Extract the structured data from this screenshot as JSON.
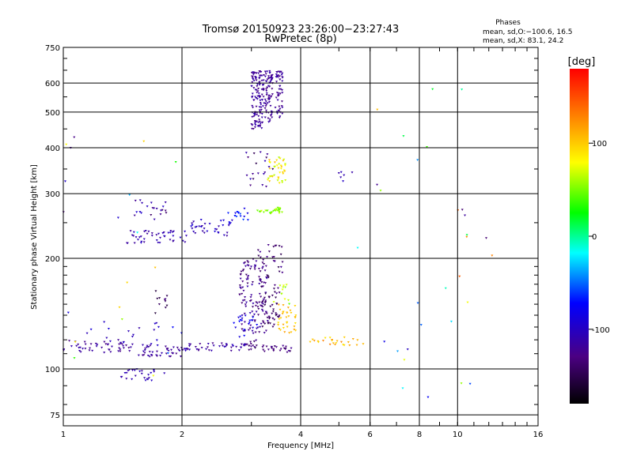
{
  "chart_data": {
    "type": "scatter",
    "title": "Tromsø 20150923 23:26:00−23:27:43",
    "subtitle": "RwPretec (8p)",
    "xlabel": "Frequency [MHz]",
    "ylabel": "Stationary phase Virtual Height [km]",
    "x_scale": "log2",
    "y_scale": "log",
    "xlim": [
      1,
      16
    ],
    "ylim": [
      70,
      750
    ],
    "x_ticks": [
      1,
      2,
      4,
      6,
      8,
      10,
      16
    ],
    "x_tick_labels": [
      "1",
      "2",
      "4",
      "6",
      "8",
      "10",
      "16"
    ],
    "y_ticks": [
      75,
      100,
      200,
      300,
      400,
      500,
      600,
      750
    ],
    "y_tick_labels": [
      "75",
      "100",
      "200",
      "300",
      "400",
      "500",
      "600",
      "750"
    ],
    "grid": true,
    "phases_info": {
      "heading": "Phases",
      "line_o": "mean, sd,O:−100.6, 16.5",
      "line_x": "mean, sd,X:  83.1, 24.2"
    },
    "colorbar": {
      "label": "[deg]",
      "range": [
        -180,
        180
      ],
      "ticks": [
        100,
        0,
        -100
      ],
      "tick_labels": [
        "100",
        "0",
        "-100"
      ]
    },
    "colors": {
      "grid": "#000000",
      "background": "#ffffff"
    },
    "clusters": [
      {
        "f": [
          1.0,
          1.5
        ],
        "h": [
          110,
          120
        ],
        "n": 50,
        "phase": [
          -130,
          -110
        ]
      },
      {
        "f": [
          1.5,
          2.0
        ],
        "h": [
          108,
          116
        ],
        "n": 40,
        "phase": [
          -130,
          -110
        ]
      },
      {
        "f": [
          2.0,
          2.9
        ],
        "h": [
          112,
          118
        ],
        "n": 45,
        "phase": [
          -130,
          -100
        ]
      },
      {
        "f": [
          2.9,
          3.1
        ],
        "h": [
          112,
          120
        ],
        "n": 15,
        "phase": [
          -150,
          -120
        ]
      },
      {
        "f": [
          3.2,
          3.8
        ],
        "h": [
          111,
          116
        ],
        "n": 25,
        "phase": [
          -140,
          -120
        ]
      },
      {
        "f": [
          1.4,
          1.7
        ],
        "h": [
          93,
          100
        ],
        "n": 25,
        "phase": [
          -120,
          -100
        ]
      },
      {
        "f": [
          1.1,
          1.8
        ],
        "h": [
          115,
          135
        ],
        "n": 18,
        "phase": [
          -120,
          -90
        ]
      },
      {
        "f": [
          1.7,
          1.85
        ],
        "h": [
          140,
          165
        ],
        "n": 10,
        "phase": [
          -160,
          -140
        ]
      },
      {
        "f": [
          1.45,
          2.1
        ],
        "h": [
          220,
          240
        ],
        "n": 45,
        "phase": [
          -120,
          -100
        ]
      },
      {
        "f": [
          2.1,
          2.7
        ],
        "h": [
          230,
          255
        ],
        "n": 35,
        "phase": [
          -120,
          -90
        ]
      },
      {
        "f": [
          2.6,
          2.95
        ],
        "h": [
          250,
          275
        ],
        "n": 15,
        "phase": [
          -90,
          -60
        ]
      },
      {
        "f": [
          1.5,
          1.85
        ],
        "h": [
          255,
          290
        ],
        "n": 20,
        "phase": [
          -140,
          -90
        ]
      },
      {
        "f": [
          2.8,
          3.3
        ],
        "h": [
          125,
          200
        ],
        "n": 120,
        "phase": [
          -140,
          -110
        ]
      },
      {
        "f": [
          2.7,
          3.1
        ],
        "h": [
          122,
          140
        ],
        "n": 20,
        "phase": [
          -100,
          -70
        ]
      },
      {
        "f": [
          3.2,
          3.55
        ],
        "h": [
          130,
          160
        ],
        "n": 40,
        "phase": [
          -150,
          -130
        ]
      },
      {
        "f": [
          3.1,
          3.6
        ],
        "h": [
          160,
          220
        ],
        "n": 40,
        "phase": [
          -150,
          -120
        ]
      },
      {
        "f": [
          3.5,
          3.9
        ],
        "h": [
          125,
          150
        ],
        "n": 35,
        "phase": [
          90,
          120
        ]
      },
      {
        "f": [
          3.4,
          3.8
        ],
        "h": [
          150,
          170
        ],
        "n": 12,
        "phase": [
          40,
          80
        ]
      },
      {
        "f": [
          3.1,
          3.6
        ],
        "h": [
          265,
          275
        ],
        "n": 30,
        "phase": [
          40,
          70
        ]
      },
      {
        "f": [
          3.3,
          3.7
        ],
        "h": [
          320,
          380
        ],
        "n": 40,
        "phase": [
          60,
          110
        ]
      },
      {
        "f": [
          2.9,
          3.4
        ],
        "h": [
          310,
          390
        ],
        "n": 20,
        "phase": [
          -150,
          -100
        ]
      },
      {
        "f": [
          3.0,
          3.2
        ],
        "h": [
          450,
          650
        ],
        "n": 110,
        "phase": [
          -130,
          -110
        ]
      },
      {
        "f": [
          3.2,
          3.4
        ],
        "h": [
          470,
          650
        ],
        "n": 80,
        "phase": [
          -130,
          -110
        ]
      },
      {
        "f": [
          3.45,
          3.6
        ],
        "h": [
          480,
          650
        ],
        "n": 50,
        "phase": [
          -130,
          -110
        ]
      },
      {
        "f": [
          4.2,
          5.8
        ],
        "h": [
          116,
          122
        ],
        "n": 25,
        "phase": [
          90,
          130
        ]
      },
      {
        "f": [
          4.8,
          5.5
        ],
        "h": [
          320,
          345
        ],
        "n": 6,
        "phase": [
          -120,
          -100
        ]
      },
      {
        "f": [
          5.5,
          12.5
        ],
        "h": [
          75,
          650
        ],
        "n": 30,
        "phase": [
          -140,
          150
        ]
      },
      {
        "f": [
          1.0,
          2.0
        ],
        "h": [
          90,
          470
        ],
        "n": 25,
        "phase": [
          -140,
          120
        ]
      }
    ]
  }
}
